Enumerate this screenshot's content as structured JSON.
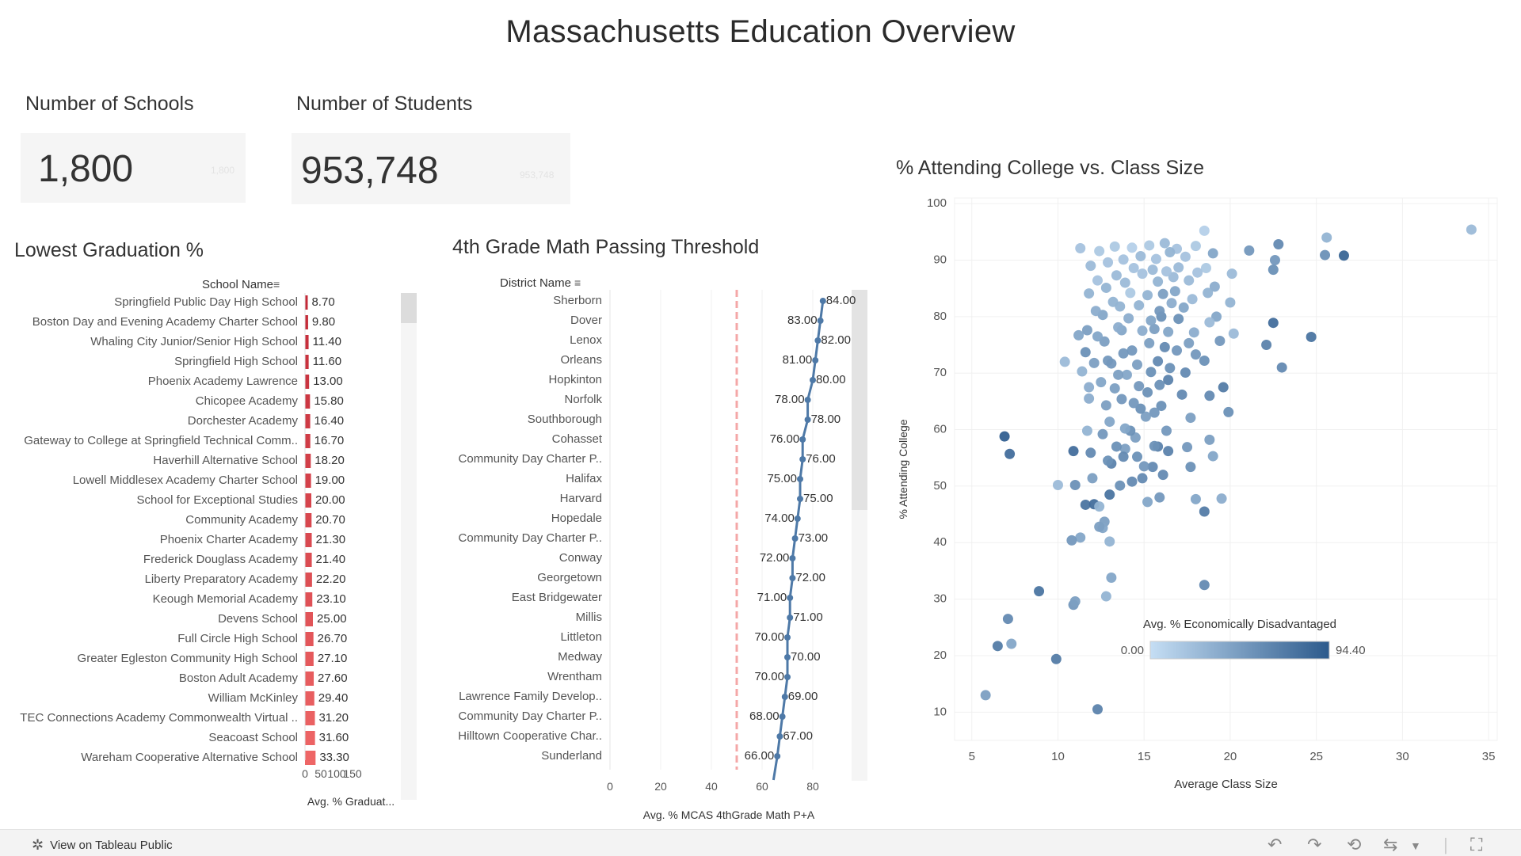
{
  "title": "Massachusetts Education Overview",
  "kpis": {
    "schools": {
      "title": "Number of Schools",
      "value": "1,800"
    },
    "students": {
      "title": "Number of Students",
      "value": "953,748"
    }
  },
  "colors": {
    "bar_dark": "#c32a38",
    "bar_light": "#ee6666",
    "line": "#4e79a7",
    "ref_line": "#f4a7a7",
    "scatter_low": "#c5def4",
    "scatter_high": "#2c5a8c",
    "scrollbar": "#e6e6e6"
  },
  "footer": {
    "link_label": "View on Tableau Public"
  },
  "chart_data": [
    {
      "id": "grad",
      "type": "bar",
      "orientation": "horizontal",
      "title": "Lowest Graduation %",
      "row_header": "School Name",
      "xlabel": "Avg. % Graduat...",
      "xlim": [
        0,
        150
      ],
      "xticks": [
        "0",
        "50",
        "100",
        "150"
      ],
      "categories": [
        "Springfield Public Day High School",
        "Boston Day and Evening Academy Charter School",
        "Whaling City Junior/Senior High School",
        "Springfield High School",
        "Phoenix Academy Lawrence",
        "Chicopee Academy",
        "Dorchester Academy",
        "Gateway to College at Springfield Technical Comm..",
        "Haverhill Alternative School",
        "Lowell Middlesex Academy Charter School",
        "School for Exceptional Studies",
        "Community Academy",
        "Phoenix Charter Academy",
        "Frederick Douglass Academy",
        "Liberty Preparatory Academy",
        "Keough Memorial Academy",
        "Devens School",
        "Full Circle High School",
        "Greater Egleston Community High School",
        "Boston Adult Academy",
        "William McKinley",
        "TEC Connections Academy Commonwealth Virtual ..",
        "Seacoast School",
        "Wareham Cooperative Alternative School"
      ],
      "values": [
        8.7,
        9.8,
        11.4,
        11.6,
        13.0,
        15.8,
        16.4,
        16.7,
        18.2,
        19.0,
        20.0,
        20.7,
        21.3,
        21.4,
        22.2,
        23.1,
        25.0,
        26.7,
        27.1,
        27.6,
        29.4,
        31.2,
        31.6,
        33.3
      ],
      "labels": [
        "8.70",
        "9.80",
        "11.40",
        "11.60",
        "13.00",
        "15.80",
        "16.40",
        "16.70",
        "18.20",
        "19.00",
        "20.00",
        "20.70",
        "21.30",
        "21.40",
        "22.20",
        "23.10",
        "25.00",
        "26.70",
        "27.10",
        "27.60",
        "29.40",
        "31.20",
        "31.60",
        "33.30"
      ]
    },
    {
      "id": "math",
      "type": "line",
      "orientation": "horizontal",
      "title": "4th Grade Math Passing Threshold",
      "row_header": "District Name",
      "xlabel": "Avg. % MCAS 4thGrade Math P+A",
      "xlim": [
        0,
        100
      ],
      "xticks": [
        0,
        20,
        40,
        60,
        80
      ],
      "reference_line": 50,
      "categories": [
        "Sherborn",
        "Dover",
        "Lenox",
        "Orleans",
        "Hopkinton",
        "Norfolk",
        "Southborough",
        "Cohasset",
        "Community Day Charter P..",
        "Halifax",
        "Harvard",
        "Hopedale",
        "Community Day Charter P..",
        "Conway",
        "Georgetown",
        "East Bridgewater",
        "Millis",
        "Littleton",
        "Medway",
        "Wrentham",
        "Lawrence Family Develop..",
        "Community Day Charter P..",
        "Hilltown Cooperative Char..",
        "Sunderland"
      ],
      "values": [
        84,
        83,
        82,
        81,
        80,
        78,
        78,
        76,
        76,
        75,
        75,
        74,
        73,
        72,
        72,
        71,
        71,
        70,
        70,
        70,
        69,
        68,
        67,
        66
      ],
      "labels": [
        "84.00",
        "83.00",
        "82.00",
        "81.00",
        "80.00",
        "78.00",
        "78.00",
        "76.00",
        "76.00",
        "75.00",
        "75.00",
        "74.00",
        "73.00",
        "72.00",
        "72.00",
        "71.00",
        "71.00",
        "70.00",
        "70.00",
        "70.00",
        "69.00",
        "68.00",
        "67.00",
        "66.00"
      ]
    },
    {
      "id": "scatter",
      "type": "scatter",
      "title": "% Attending College vs. Class Size",
      "xlabel": "Average Class Size",
      "ylabel": "% Attending College",
      "xlim": [
        4,
        35.5
      ],
      "ylim": [
        5,
        101
      ],
      "xticks": [
        5,
        10,
        15,
        20,
        25,
        30,
        35
      ],
      "yticks": [
        10,
        20,
        30,
        40,
        50,
        60,
        70,
        80,
        90,
        100
      ],
      "color_legend": {
        "title": "Avg. % Economically Disadvantaged",
        "min": 0,
        "max": 94.4,
        "min_label": "0.00",
        "max_label": "94.40"
      },
      "points": [
        [
          34.0,
          95.4,
          25
        ],
        [
          26.6,
          90.8,
          85
        ],
        [
          25.6,
          94.0,
          30
        ],
        [
          25.5,
          90.9,
          55
        ],
        [
          24.7,
          76.4,
          75
        ],
        [
          23.0,
          71.0,
          60
        ],
        [
          22.8,
          92.8,
          60
        ],
        [
          22.5,
          88.3,
          55
        ],
        [
          22.6,
          90.0,
          50
        ],
        [
          22.5,
          78.9,
          80
        ],
        [
          22.1,
          75.0,
          65
        ],
        [
          21.1,
          91.7,
          50
        ],
        [
          20.1,
          87.6,
          25
        ],
        [
          20.0,
          82.5,
          30
        ],
        [
          20.2,
          77.0,
          25
        ],
        [
          19.6,
          67.5,
          70
        ],
        [
          19.9,
          63.1,
          55
        ],
        [
          19.0,
          91.2,
          40
        ],
        [
          19.1,
          85.3,
          35
        ],
        [
          19.2,
          80.0,
          40
        ],
        [
          19.4,
          75.7,
          50
        ],
        [
          18.5,
          95.2,
          10
        ],
        [
          18.6,
          88.6,
          15
        ],
        [
          18.7,
          84.2,
          30
        ],
        [
          18.8,
          79.0,
          25
        ],
        [
          18.5,
          72.2,
          55
        ],
        [
          18.8,
          58.2,
          45
        ],
        [
          18.5,
          45.5,
          70
        ],
        [
          18.5,
          32.5,
          60
        ],
        [
          19.0,
          55.3,
          40
        ],
        [
          18.8,
          66.0,
          60
        ],
        [
          18.0,
          92.5,
          15
        ],
        [
          18.1,
          87.8,
          20
        ],
        [
          17.8,
          83.1,
          25
        ],
        [
          17.9,
          77.2,
          35
        ],
        [
          18.0,
          73.3,
          50
        ],
        [
          17.4,
          90.6,
          20
        ],
        [
          17.6,
          86.4,
          25
        ],
        [
          17.3,
          81.6,
          40
        ],
        [
          17.6,
          75.3,
          45
        ],
        [
          17.4,
          70.1,
          60
        ],
        [
          17.2,
          66.2,
          60
        ],
        [
          17.7,
          62.1,
          45
        ],
        [
          17.5,
          56.9,
          50
        ],
        [
          17.7,
          53.4,
          55
        ],
        [
          18.0,
          47.7,
          40
        ],
        [
          16.9,
          92.0,
          20
        ],
        [
          17.0,
          88.7,
          25
        ],
        [
          16.8,
          84.5,
          40
        ],
        [
          17.0,
          79.6,
          55
        ],
        [
          16.9,
          74.0,
          50
        ],
        [
          16.5,
          91.4,
          30
        ],
        [
          16.7,
          87.0,
          25
        ],
        [
          16.6,
          82.4,
          35
        ],
        [
          16.4,
          77.3,
          40
        ],
        [
          16.5,
          70.9,
          55
        ],
        [
          16.2,
          93.0,
          25
        ],
        [
          16.3,
          88.0,
          20
        ],
        [
          16.1,
          84.0,
          45
        ],
        [
          16.0,
          80.0,
          55
        ],
        [
          16.2,
          74.6,
          60
        ],
        [
          16.4,
          68.8,
          65
        ],
        [
          16.0,
          64.2,
          55
        ],
        [
          16.3,
          59.8,
          50
        ],
        [
          16.4,
          56.2,
          65
        ],
        [
          16.1,
          52.0,
          60
        ],
        [
          15.7,
          90.2,
          20
        ],
        [
          15.8,
          86.2,
          30
        ],
        [
          15.9,
          81.0,
          50
        ],
        [
          15.6,
          77.8,
          45
        ],
        [
          15.8,
          72.1,
          60
        ],
        [
          15.9,
          67.9,
          55
        ],
        [
          15.6,
          63.0,
          50
        ],
        [
          15.8,
          57.0,
          65
        ],
        [
          15.5,
          53.4,
          60
        ],
        [
          15.9,
          48.0,
          50
        ],
        [
          15.3,
          92.6,
          15
        ],
        [
          15.5,
          88.3,
          25
        ],
        [
          15.2,
          83.8,
          30
        ],
        [
          15.4,
          79.3,
          40
        ],
        [
          15.3,
          75.3,
          45
        ],
        [
          15.4,
          70.2,
          55
        ],
        [
          15.2,
          66.6,
          55
        ],
        [
          15.1,
          62.3,
          45
        ],
        [
          15.6,
          57.1,
          55
        ],
        [
          15.0,
          53.5,
          50
        ],
        [
          14.8,
          90.7,
          25
        ],
        [
          14.9,
          87.6,
          20
        ],
        [
          14.7,
          82.0,
          30
        ],
        [
          14.9,
          77.5,
          35
        ],
        [
          14.6,
          71.5,
          45
        ],
        [
          14.7,
          67.7,
          50
        ],
        [
          14.8,
          63.7,
          55
        ],
        [
          14.5,
          58.6,
          45
        ],
        [
          14.6,
          55.2,
          55
        ],
        [
          14.9,
          51.4,
          60
        ],
        [
          14.3,
          92.2,
          10
        ],
        [
          14.4,
          88.6,
          20
        ],
        [
          14.2,
          84.2,
          15
        ],
        [
          14.1,
          79.7,
          35
        ],
        [
          14.3,
          74.0,
          50
        ],
        [
          14.0,
          69.7,
          40
        ],
        [
          14.4,
          64.7,
          50
        ],
        [
          14.2,
          59.8,
          55
        ],
        [
          13.9,
          56.6,
          45
        ],
        [
          14.3,
          50.8,
          60
        ],
        [
          13.8,
          90.1,
          20
        ],
        [
          13.9,
          86.0,
          25
        ],
        [
          13.6,
          81.8,
          30
        ],
        [
          13.7,
          77.6,
          40
        ],
        [
          13.8,
          73.5,
          50
        ],
        [
          13.5,
          69.7,
          45
        ],
        [
          13.7,
          65.4,
          50
        ],
        [
          13.9,
          60.2,
          40
        ],
        [
          13.8,
          55.2,
          60
        ],
        [
          13.6,
          50.1,
          55
        ],
        [
          13.3,
          92.4,
          15
        ],
        [
          13.4,
          87.3,
          25
        ],
        [
          13.2,
          82.6,
          30
        ],
        [
          13.5,
          78.1,
          35
        ],
        [
          13.1,
          71.7,
          50
        ],
        [
          13.3,
          67.3,
          45
        ],
        [
          13.0,
          61.4,
          40
        ],
        [
          13.4,
          57.0,
          55
        ],
        [
          13.1,
          54.0,
          65
        ],
        [
          13.0,
          48.5,
          75
        ],
        [
          12.9,
          89.6,
          20
        ],
        [
          12.8,
          85.1,
          30
        ],
        [
          12.6,
          80.3,
          40
        ],
        [
          12.7,
          75.6,
          45
        ],
        [
          12.9,
          72.2,
          50
        ],
        [
          12.5,
          68.4,
          40
        ],
        [
          12.8,
          64.3,
          45
        ],
        [
          12.6,
          59.2,
          50
        ],
        [
          12.9,
          54.5,
          55
        ],
        [
          12.7,
          43.7,
          45
        ],
        [
          12.4,
          91.6,
          15
        ],
        [
          12.3,
          86.4,
          20
        ],
        [
          12.2,
          81.0,
          35
        ],
        [
          12.3,
          76.5,
          40
        ],
        [
          12.1,
          71.8,
          45
        ],
        [
          11.9,
          89.0,
          25
        ],
        [
          11.8,
          84.1,
          30
        ],
        [
          11.7,
          77.6,
          45
        ],
        [
          11.6,
          73.7,
          55
        ],
        [
          11.8,
          67.5,
          35
        ],
        [
          11.3,
          92.1,
          20
        ],
        [
          11.2,
          76.7,
          40
        ],
        [
          11.4,
          70.3,
          30
        ],
        [
          11.8,
          65.5,
          35
        ],
        [
          11.7,
          59.8,
          30
        ],
        [
          11.9,
          55.9,
          60
        ],
        [
          12.0,
          51.4,
          45
        ],
        [
          11.6,
          46.7,
          75
        ],
        [
          12.1,
          46.8,
          80
        ],
        [
          12.4,
          46.4,
          30
        ],
        [
          10.9,
          56.2,
          80
        ],
        [
          11.0,
          50.2,
          55
        ],
        [
          11.3,
          40.9,
          40
        ],
        [
          10.8,
          40.4,
          50
        ],
        [
          12.6,
          42.6,
          40
        ],
        [
          13.0,
          40.2,
          30
        ],
        [
          12.4,
          42.8,
          45
        ],
        [
          10.4,
          72.0,
          25
        ],
        [
          10.0,
          50.2,
          25
        ],
        [
          12.8,
          30.5,
          30
        ],
        [
          9.9,
          19.4,
          70
        ],
        [
          8.9,
          31.4,
          75
        ],
        [
          10.9,
          29.0,
          50
        ],
        [
          11.0,
          29.6,
          45
        ],
        [
          7.1,
          26.5,
          60
        ],
        [
          6.5,
          21.7,
          70
        ],
        [
          7.3,
          22.1,
          40
        ],
        [
          5.8,
          13.0,
          45
        ],
        [
          12.3,
          10.5,
          65
        ],
        [
          6.9,
          58.8,
          90
        ],
        [
          7.2,
          55.7,
          80
        ],
        [
          13.1,
          33.8,
          40
        ],
        [
          15.2,
          47.2,
          40
        ],
        [
          19.5,
          47.8,
          35
        ]
      ]
    }
  ]
}
